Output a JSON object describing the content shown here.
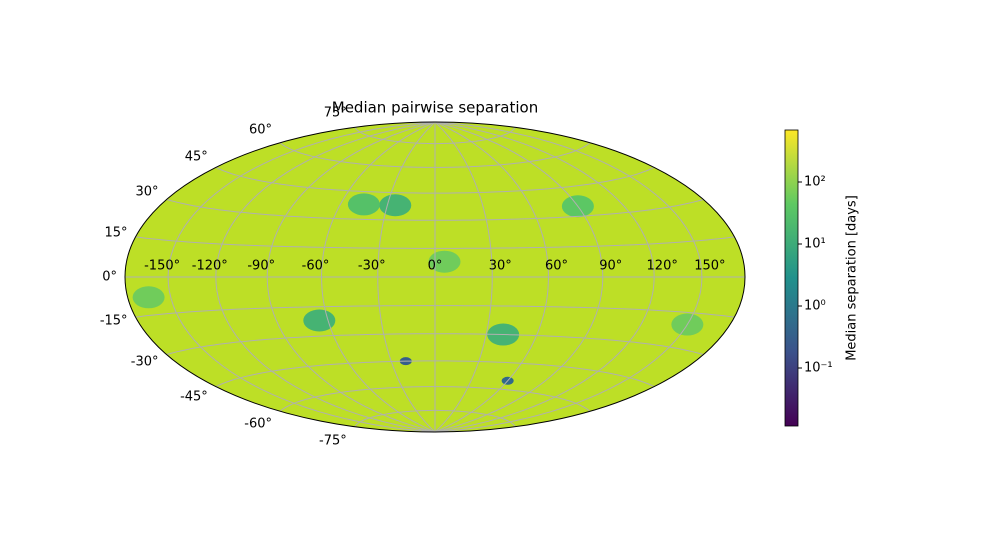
{
  "chart_data": {
    "type": "skymap",
    "projection": "hammer",
    "title": "Median pairwise separation",
    "background_color": "#bddf26",
    "xticks": [
      {
        "value": -150,
        "label": "-150°"
      },
      {
        "value": -120,
        "label": "-120°"
      },
      {
        "value": -90,
        "label": "-90°"
      },
      {
        "value": -60,
        "label": "-60°"
      },
      {
        "value": -30,
        "label": "-30°"
      },
      {
        "value": 0,
        "label": "0°"
      },
      {
        "value": 30,
        "label": "30°"
      },
      {
        "value": 60,
        "label": "60°"
      },
      {
        "value": 90,
        "label": "90°"
      },
      {
        "value": 120,
        "label": "120°"
      },
      {
        "value": 150,
        "label": "150°"
      }
    ],
    "yticks": [
      {
        "value": -75,
        "label": "-75°"
      },
      {
        "value": -60,
        "label": "-60°"
      },
      {
        "value": -45,
        "label": "-45°"
      },
      {
        "value": -30,
        "label": "-30°"
      },
      {
        "value": -15,
        "label": "-15°"
      },
      {
        "value": 0,
        "label": "0°"
      },
      {
        "value": 15,
        "label": "15°"
      },
      {
        "value": 30,
        "label": "30°"
      },
      {
        "value": 45,
        "label": "45°"
      },
      {
        "value": 60,
        "label": "60°"
      },
      {
        "value": 75,
        "label": "75°"
      }
    ],
    "grid": true,
    "patches": [
      {
        "lon": -65,
        "lat": -22,
        "value": 15
      },
      {
        "lon": -25,
        "lat": 38,
        "value": 15
      },
      {
        "lon": -45,
        "lat": 38,
        "value": 30
      },
      {
        "lon": 40,
        "lat": -30,
        "value": 15
      },
      {
        "lon": 90,
        "lat": 35,
        "value": 40
      },
      {
        "lon": 150,
        "lat": -20,
        "value": 60
      },
      {
        "lon": -165,
        "lat": -8,
        "value": 60
      },
      {
        "lon": 5,
        "lat": 8,
        "value": 60
      },
      {
        "lon": 60,
        "lat": -55,
        "value": 0.5
      },
      {
        "lon": -20,
        "lat": -45,
        "value": 0.3
      }
    ],
    "colorbar": {
      "label": "Median separation [days]",
      "log": true,
      "colormap": "viridis",
      "lim": [
        0.0116,
        690
      ],
      "ticks": [
        {
          "value": 0.1,
          "label": "10⁻¹"
        },
        {
          "value": 1,
          "label": "10⁰"
        },
        {
          "value": 10,
          "label": "10¹"
        },
        {
          "value": 100,
          "label": "10²"
        }
      ]
    }
  }
}
